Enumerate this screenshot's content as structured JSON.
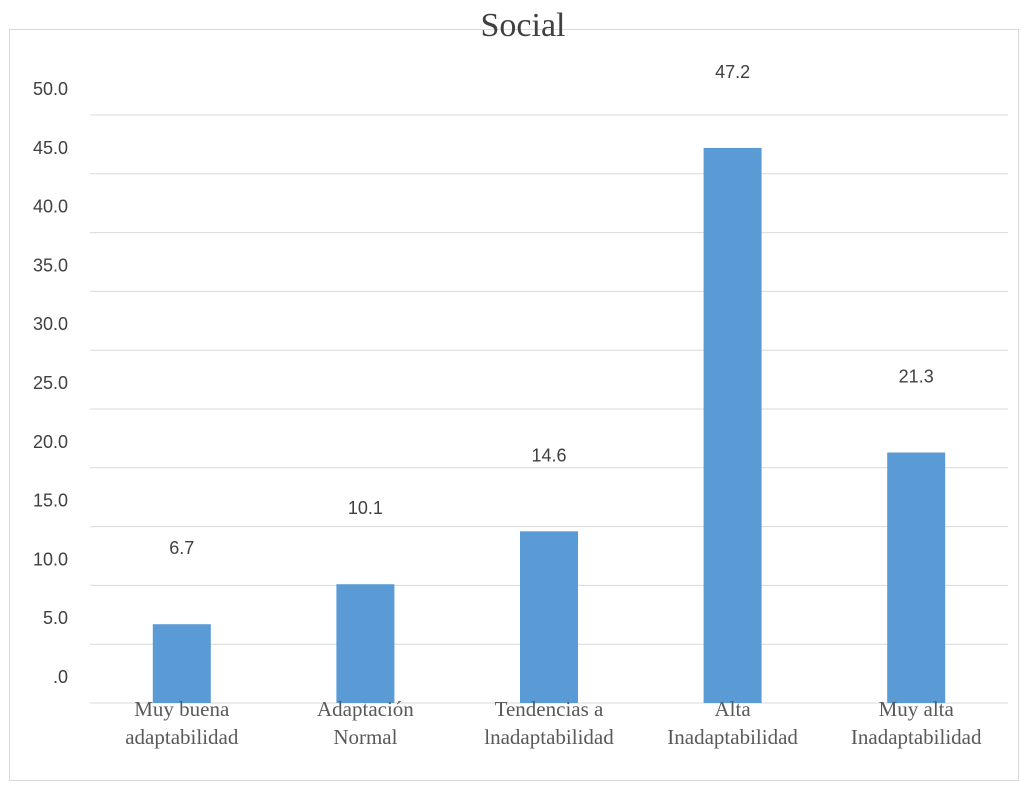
{
  "chart_data": {
    "type": "bar",
    "title": "Social",
    "categories": [
      [
        "Muy buena",
        "adaptabilidad"
      ],
      [
        "Adaptación",
        "Normal"
      ],
      [
        "Tendencias a",
        "lnadaptabilidad"
      ],
      [
        "Alta",
        "Inadaptabilidad"
      ],
      [
        "Muy alta",
        "Inadaptabilidad"
      ]
    ],
    "values": [
      6.7,
      10.1,
      14.6,
      47.2,
      21.3
    ],
    "data_labels": [
      "6.7",
      "10.1",
      "14.6",
      "47.2",
      "21.3"
    ],
    "y_tick_labels": [
      ".0",
      "5.0",
      "10.0",
      "15.0",
      "20.0",
      "25.0",
      "30.0",
      "35.0",
      "40.0",
      "45.0",
      "50.0"
    ],
    "ylim": [
      0,
      50
    ],
    "grid": true,
    "legend": "none",
    "bar_color": "#5b9bd5"
  }
}
